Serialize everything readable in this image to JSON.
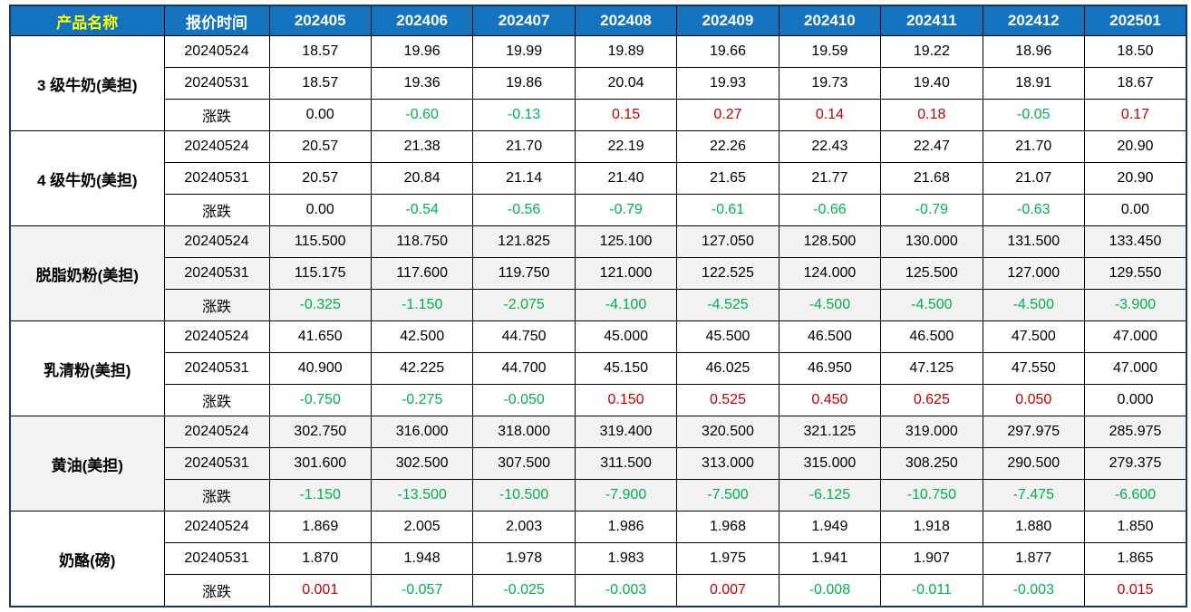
{
  "header": {
    "product_label": "产品名称",
    "time_label": "报价时间",
    "months": [
      "202405",
      "202406",
      "202407",
      "202408",
      "202409",
      "202410",
      "202411",
      "202412",
      "202501"
    ]
  },
  "row_labels": {
    "first_quote": "20240524",
    "second_quote": "20240531",
    "change": "涨跌"
  },
  "colors": {
    "header_bg": "#1373BE",
    "header_text": "#FFFFFF",
    "product_header_text": "#FFFF00",
    "positive": "#C00000",
    "negative": "#00B050",
    "zero": "#000000",
    "shaded_group_bg": "#F2F2F2",
    "border": "#000000",
    "outer_border": "#17375E"
  },
  "chart_data": {
    "type": "table",
    "columns": [
      "产品名称",
      "报价时间",
      "202405",
      "202406",
      "202407",
      "202408",
      "202409",
      "202410",
      "202411",
      "202412",
      "202501"
    ],
    "groups": [
      {
        "name": "3 级牛奶(美担)",
        "shaded": false,
        "rows": [
          {
            "label": "20240524",
            "change_row": false,
            "values": [
              "18.57",
              "19.96",
              "19.99",
              "19.89",
              "19.66",
              "19.59",
              "19.22",
              "18.96",
              "18.50"
            ]
          },
          {
            "label": "20240531",
            "change_row": false,
            "values": [
              "18.57",
              "19.36",
              "19.86",
              "20.04",
              "19.93",
              "19.73",
              "19.40",
              "18.91",
              "18.67"
            ]
          },
          {
            "label": "涨跌",
            "change_row": true,
            "values": [
              "0.00",
              "-0.60",
              "-0.13",
              "0.15",
              "0.27",
              "0.14",
              "0.18",
              "-0.05",
              "0.17"
            ]
          }
        ]
      },
      {
        "name": "4 级牛奶(美担)",
        "shaded": false,
        "rows": [
          {
            "label": "20240524",
            "change_row": false,
            "values": [
              "20.57",
              "21.38",
              "21.70",
              "22.19",
              "22.26",
              "22.43",
              "22.47",
              "21.70",
              "20.90"
            ]
          },
          {
            "label": "20240531",
            "change_row": false,
            "values": [
              "20.57",
              "20.84",
              "21.14",
              "21.40",
              "21.65",
              "21.77",
              "21.68",
              "21.07",
              "20.90"
            ]
          },
          {
            "label": "涨跌",
            "change_row": true,
            "values": [
              "0.00",
              "-0.54",
              "-0.56",
              "-0.79",
              "-0.61",
              "-0.66",
              "-0.79",
              "-0.63",
              "0.00"
            ]
          }
        ]
      },
      {
        "name": "脱脂奶粉(美担)",
        "shaded": true,
        "rows": [
          {
            "label": "20240524",
            "change_row": false,
            "values": [
              "115.500",
              "118.750",
              "121.825",
              "125.100",
              "127.050",
              "128.500",
              "130.000",
              "131.500",
              "133.450"
            ]
          },
          {
            "label": "20240531",
            "change_row": false,
            "values": [
              "115.175",
              "117.600",
              "119.750",
              "121.000",
              "122.525",
              "124.000",
              "125.500",
              "127.000",
              "129.550"
            ]
          },
          {
            "label": "涨跌",
            "change_row": true,
            "values": [
              "-0.325",
              "-1.150",
              "-2.075",
              "-4.100",
              "-4.525",
              "-4.500",
              "-4.500",
              "-4.500",
              "-3.900"
            ]
          }
        ]
      },
      {
        "name": "乳清粉(美担)",
        "shaded": false,
        "rows": [
          {
            "label": "20240524",
            "change_row": false,
            "values": [
              "41.650",
              "42.500",
              "44.750",
              "45.000",
              "45.500",
              "46.500",
              "46.500",
              "47.500",
              "47.000"
            ]
          },
          {
            "label": "20240531",
            "change_row": false,
            "values": [
              "40.900",
              "42.225",
              "44.700",
              "45.150",
              "46.025",
              "46.950",
              "47.125",
              "47.550",
              "47.000"
            ]
          },
          {
            "label": "涨跌",
            "change_row": true,
            "values": [
              "-0.750",
              "-0.275",
              "-0.050",
              "0.150",
              "0.525",
              "0.450",
              "0.625",
              "0.050",
              "0.000"
            ]
          }
        ]
      },
      {
        "name": "黄油(美担)",
        "shaded": true,
        "rows": [
          {
            "label": "20240524",
            "change_row": false,
            "values": [
              "302.750",
              "316.000",
              "318.000",
              "319.400",
              "320.500",
              "321.125",
              "319.000",
              "297.975",
              "285.975"
            ]
          },
          {
            "label": "20240531",
            "change_row": false,
            "values": [
              "301.600",
              "302.500",
              "307.500",
              "311.500",
              "313.000",
              "315.000",
              "308.250",
              "290.500",
              "279.375"
            ]
          },
          {
            "label": "涨跌",
            "change_row": true,
            "values": [
              "-1.150",
              "-13.500",
              "-10.500",
              "-7.900",
              "-7.500",
              "-6.125",
              "-10.750",
              "-7.475",
              "-6.600"
            ]
          }
        ]
      },
      {
        "name": "奶酪(磅)",
        "shaded": false,
        "rows": [
          {
            "label": "20240524",
            "change_row": false,
            "values": [
              "1.869",
              "2.005",
              "2.003",
              "1.986",
              "1.968",
              "1.949",
              "1.918",
              "1.880",
              "1.850"
            ]
          },
          {
            "label": "20240531",
            "change_row": false,
            "values": [
              "1.870",
              "1.948",
              "1.978",
              "1.983",
              "1.975",
              "1.941",
              "1.907",
              "1.877",
              "1.865"
            ]
          },
          {
            "label": "涨跌",
            "change_row": true,
            "values": [
              "0.001",
              "-0.057",
              "-0.025",
              "-0.003",
              "0.007",
              "-0.008",
              "-0.011",
              "-0.003",
              "0.015"
            ]
          }
        ]
      }
    ]
  }
}
